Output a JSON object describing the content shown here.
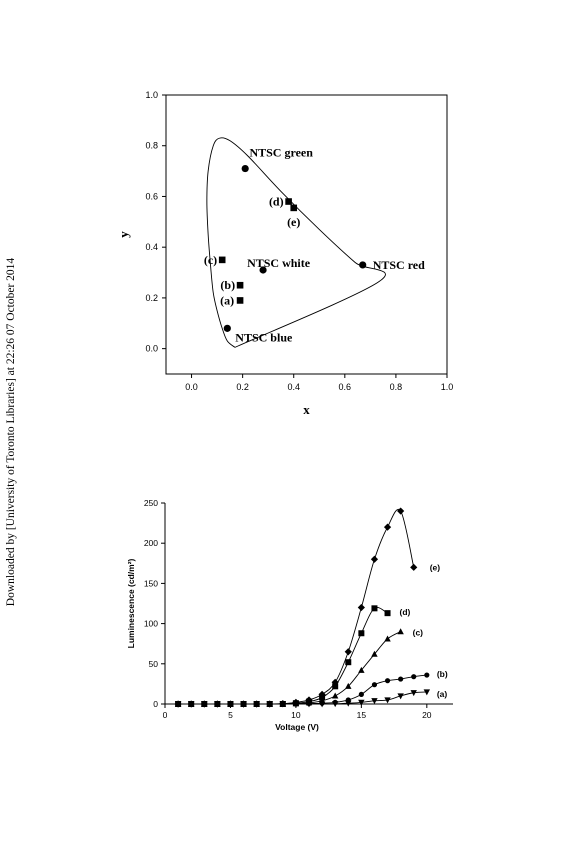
{
  "side_note": "Downloaded by [University of Toronto Libraries] at 22:26 07 October 2014",
  "chart_data": [
    {
      "type": "scatter",
      "title": "",
      "xlabel": "x",
      "ylabel": "y",
      "xlim": [
        -0.1,
        1.0
      ],
      "ylim": [
        -0.1,
        1.0
      ],
      "xticks": [
        "0.0",
        "0.2",
        "0.4",
        "0.6",
        "0.8",
        "1.0"
      ],
      "yticks": [
        "0.0",
        "0.2",
        "0.4",
        "0.6",
        "0.8",
        "1.0"
      ],
      "grid": false,
      "locus": [
        [
          0.17,
          0.005
        ],
        [
          0.14,
          0.03
        ],
        [
          0.12,
          0.08
        ],
        [
          0.1,
          0.15
        ],
        [
          0.085,
          0.22
        ],
        [
          0.075,
          0.32
        ],
        [
          0.065,
          0.45
        ],
        [
          0.06,
          0.58
        ],
        [
          0.065,
          0.7
        ],
        [
          0.085,
          0.8
        ],
        [
          0.11,
          0.83
        ],
        [
          0.15,
          0.82
        ],
        [
          0.22,
          0.76
        ],
        [
          0.35,
          0.62
        ],
        [
          0.5,
          0.47
        ],
        [
          0.64,
          0.34
        ],
        [
          0.735,
          0.265
        ],
        [
          0.17,
          0.005
        ]
      ],
      "reference_points": [
        {
          "label": "NTSC green",
          "x": 0.21,
          "y": 0.71
        },
        {
          "label": "NTSC red",
          "x": 0.67,
          "y": 0.33
        },
        {
          "label": "NTSC white",
          "x": 0.28,
          "y": 0.31
        },
        {
          "label": "NTSC blue",
          "x": 0.14,
          "y": 0.08
        }
      ],
      "samples": [
        {
          "label": "(a)",
          "x": 0.19,
          "y": 0.19
        },
        {
          "label": "(b)",
          "x": 0.19,
          "y": 0.25
        },
        {
          "label": "(c)",
          "x": 0.12,
          "y": 0.35
        },
        {
          "label": "(d)",
          "x": 0.38,
          "y": 0.58
        },
        {
          "label": "(e)",
          "x": 0.4,
          "y": 0.555
        }
      ]
    },
    {
      "type": "line",
      "title": "",
      "xlabel": "Voltage  (V)",
      "ylabel": "Luminescence (cd/m²)",
      "xlim": [
        0,
        22
      ],
      "ylim": [
        0,
        250
      ],
      "xticks": [
        "0",
        "5",
        "10",
        "15",
        "20"
      ],
      "yticks": [
        "0",
        "50",
        "100",
        "150",
        "200",
        "250"
      ],
      "grid": false,
      "series": [
        {
          "name": "(a)",
          "marker": "triangle-down",
          "x": [
            1,
            2,
            3,
            4,
            5,
            6,
            7,
            8,
            9,
            10,
            11,
            12,
            13,
            14,
            15,
            16,
            17,
            18,
            19,
            20
          ],
          "values": [
            0,
            0,
            0,
            0,
            0,
            0,
            0,
            0,
            0,
            0,
            0,
            0,
            0.3,
            1,
            2,
            4,
            5,
            10,
            14,
            15
          ]
        },
        {
          "name": "(b)",
          "marker": "circle",
          "x": [
            1,
            2,
            3,
            4,
            5,
            6,
            7,
            8,
            9,
            10,
            11,
            12,
            13,
            14,
            15,
            16,
            17,
            18,
            19,
            20
          ],
          "values": [
            0,
            0,
            0,
            0,
            0,
            0,
            0,
            0,
            0,
            0,
            0.5,
            1,
            2,
            5,
            12,
            24,
            29,
            31,
            34,
            36
          ]
        },
        {
          "name": "(c)",
          "marker": "triangle-up",
          "x": [
            1,
            2,
            3,
            4,
            5,
            6,
            7,
            8,
            9,
            10,
            11,
            12,
            13,
            14,
            15,
            16,
            17,
            18
          ],
          "values": [
            0,
            0,
            0,
            0,
            0,
            0,
            0,
            0,
            0,
            0.5,
            1.5,
            4,
            10,
            22,
            42,
            62,
            81,
            90
          ]
        },
        {
          "name": "(d)",
          "marker": "square",
          "x": [
            1,
            2,
            3,
            4,
            5,
            6,
            7,
            8,
            9,
            10,
            11,
            12,
            13,
            14,
            15,
            16,
            17
          ],
          "values": [
            0,
            0,
            0,
            0,
            0,
            0,
            0,
            0,
            0,
            1,
            3,
            8,
            22,
            52,
            88,
            119,
            113
          ]
        },
        {
          "name": "(e)",
          "marker": "diamond",
          "x": [
            1,
            2,
            3,
            4,
            5,
            6,
            7,
            8,
            9,
            10,
            11,
            12,
            13,
            14,
            15,
            16,
            17,
            18,
            19
          ],
          "values": [
            0,
            0,
            0,
            0,
            0,
            0,
            0,
            0,
            0.5,
            2,
            5,
            12,
            27,
            65,
            120,
            180,
            220,
            240,
            170
          ]
        }
      ]
    }
  ]
}
